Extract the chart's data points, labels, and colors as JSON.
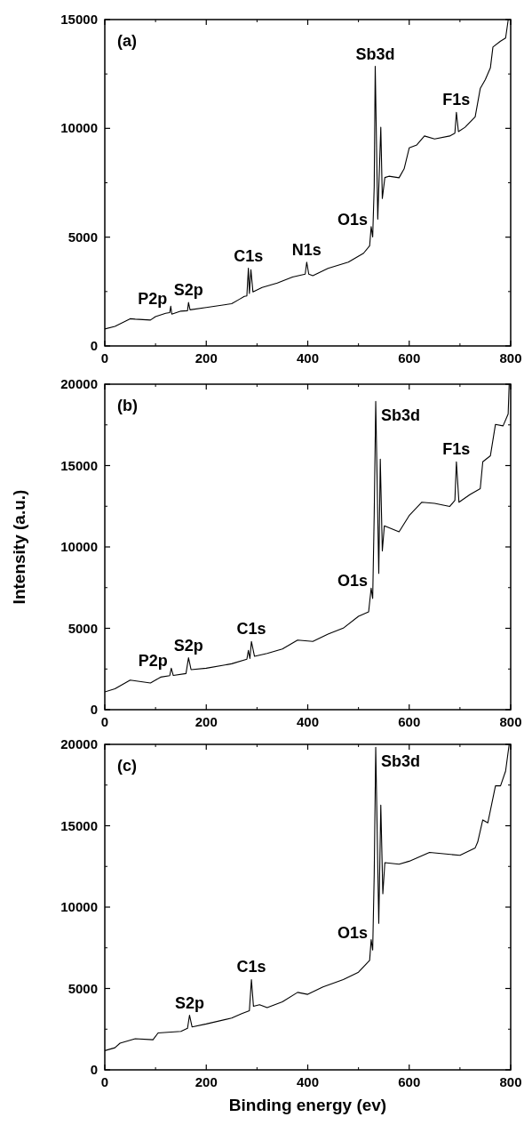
{
  "chart_data": [
    {
      "type": "line",
      "xlim": [
        0,
        800
      ],
      "ylim": [
        0,
        15000
      ],
      "xticks": [
        0,
        200,
        400,
        600,
        800
      ],
      "yticks": [
        0,
        5000,
        10000,
        15000
      ],
      "grid": false,
      "series": [
        {
          "color": "#000000",
          "x": [
            0,
            20,
            50,
            60,
            90,
            100,
            120,
            128,
            130,
            132,
            150,
            163,
            165,
            168,
            200,
            250,
            265,
            275,
            280,
            283,
            285,
            288,
            292,
            310,
            340,
            370,
            395,
            398,
            402,
            410,
            440,
            480,
            510,
            522,
            525,
            528,
            531,
            533,
            538,
            544,
            547,
            552,
            560,
            580,
            590,
            600,
            615,
            630,
            650,
            680,
            690,
            693,
            697,
            710,
            730,
            740,
            750,
            760,
            765,
            780,
            790,
            795,
            797
          ],
          "values": [
            780,
            900,
            1250,
            1230,
            1190,
            1350,
            1500,
            1530,
            1830,
            1460,
            1600,
            1620,
            2000,
            1660,
            1770,
            1940,
            2140,
            2280,
            2300,
            3570,
            2410,
            3500,
            2480,
            2690,
            2890,
            3170,
            3300,
            3850,
            3300,
            3230,
            3570,
            3850,
            4260,
            4600,
            5480,
            5010,
            7330,
            12850,
            5830,
            10050,
            6780,
            7740,
            7800,
            7730,
            8140,
            9100,
            9240,
            9650,
            9510,
            9650,
            9780,
            10740,
            9850,
            10050,
            10530,
            11830,
            12240,
            12780,
            13740,
            14010,
            14150,
            14970,
            15000
          ]
        }
      ],
      "annotations": [
        "(a)",
        {
          "text": "Sb3d",
          "x": 533,
          "y": 12850
        },
        {
          "text": "F1s",
          "x": 693,
          "y": 10740
        },
        {
          "text": "O1s",
          "x": 525,
          "y": 5480
        },
        {
          "text": "N1s",
          "x": 398,
          "y": 3850
        },
        {
          "text": "C1s",
          "x": 283,
          "y": 3570
        },
        {
          "text": "S2p",
          "x": 165,
          "y": 2000
        },
        {
          "text": "P2p",
          "x": 130,
          "y": 1830
        }
      ]
    },
    {
      "type": "line",
      "ylabel": "Intensity (a.u.)",
      "xlim": [
        0,
        800
      ],
      "ylim": [
        0,
        20000
      ],
      "xticks": [
        0,
        200,
        400,
        600,
        800
      ],
      "yticks": [
        0,
        5000,
        10000,
        15000,
        20000
      ],
      "grid": false,
      "series": [
        {
          "color": "#000000",
          "x": [
            0,
            20,
            50,
            90,
            110,
            128,
            131,
            135,
            160,
            165,
            170,
            200,
            250,
            280,
            283,
            286,
            289,
            295,
            320,
            350,
            380,
            410,
            440,
            470,
            500,
            520,
            525,
            528,
            531,
            534,
            540,
            543,
            547,
            551,
            580,
            600,
            625,
            650,
            680,
            690,
            693,
            698,
            720,
            740,
            745,
            760,
            770,
            785,
            795,
            797
          ],
          "values": [
            1090,
            1280,
            1820,
            1640,
            2000,
            2090,
            2550,
            2100,
            2220,
            3190,
            2460,
            2550,
            2820,
            3100,
            3640,
            3150,
            4190,
            3280,
            3460,
            3730,
            4280,
            4190,
            4640,
            5010,
            5740,
            6010,
            7470,
            6830,
            12000,
            18940,
            8380,
            15400,
            9750,
            11300,
            10930,
            11930,
            12750,
            12680,
            12490,
            12860,
            15230,
            12750,
            13220,
            13580,
            15230,
            15600,
            17530,
            17440,
            18170,
            20000
          ]
        }
      ],
      "annotations": [
        "(b)",
        {
          "text": "Sb3d",
          "x": 534,
          "y": 18940
        },
        {
          "text": "F1s",
          "x": 693,
          "y": 15230
        },
        {
          "text": "O1s",
          "x": 525,
          "y": 7470
        },
        {
          "text": "C1s",
          "x": 289,
          "y": 4190
        },
        {
          "text": "S2p",
          "x": 165,
          "y": 3190
        },
        {
          "text": "P2p",
          "x": 131,
          "y": 2550
        }
      ]
    },
    {
      "type": "line",
      "xlabel": "Binding energy (ev)",
      "xlim": [
        0,
        800
      ],
      "ylim": [
        0,
        20000
      ],
      "xticks": [
        0,
        200,
        400,
        600,
        800
      ],
      "yticks": [
        0,
        5000,
        10000,
        15000,
        20000
      ],
      "grid": false,
      "series": [
        {
          "color": "#000000",
          "x": [
            0,
            20,
            30,
            60,
            95,
            105,
            150,
            163,
            167,
            172,
            200,
            250,
            270,
            285,
            289,
            293,
            305,
            320,
            350,
            380,
            400,
            430,
            470,
            500,
            522,
            525,
            528,
            531,
            534,
            540,
            544,
            548,
            552,
            580,
            600,
            640,
            700,
            730,
            735,
            745,
            755,
            770,
            780,
            790,
            797
          ],
          "values": [
            1180,
            1360,
            1640,
            1910,
            1850,
            2270,
            2360,
            2550,
            3360,
            2640,
            2820,
            3180,
            3450,
            3640,
            5550,
            3910,
            4000,
            3820,
            4180,
            4760,
            4640,
            5090,
            5550,
            6000,
            6730,
            8000,
            7360,
            12000,
            19820,
            9000,
            16270,
            10820,
            12730,
            12640,
            12820,
            13360,
            13180,
            13640,
            14000,
            15360,
            15180,
            17450,
            17450,
            18360,
            20000
          ]
        }
      ],
      "annotations": [
        "(c)",
        {
          "text": "Sb3d",
          "x": 534,
          "y": 19820
        },
        {
          "text": "O1s",
          "x": 525,
          "y": 8000
        },
        {
          "text": "C1s",
          "x": 289,
          "y": 5550
        },
        {
          "text": "S2p",
          "x": 167,
          "y": 3360
        }
      ]
    }
  ]
}
